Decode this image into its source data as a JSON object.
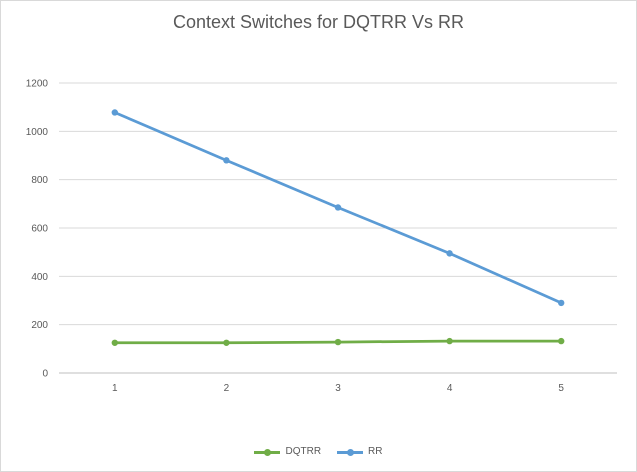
{
  "chart_data": {
    "type": "line",
    "title": "Context Switches for DQTRR Vs RR",
    "xlabel": "",
    "ylabel": "",
    "categories": [
      "1",
      "2",
      "3",
      "4",
      "5"
    ],
    "ylim": [
      0,
      1200
    ],
    "yticks": [
      0,
      200,
      400,
      600,
      800,
      1000,
      1200
    ],
    "grid": true,
    "legend_position": "bottom",
    "series": [
      {
        "name": "DQTRR",
        "color": "#70ad47",
        "values": [
          125,
          125,
          128,
          132,
          132
        ]
      },
      {
        "name": "RR",
        "color": "#5b9bd5",
        "values": [
          1078,
          880,
          685,
          495,
          290
        ]
      }
    ]
  }
}
